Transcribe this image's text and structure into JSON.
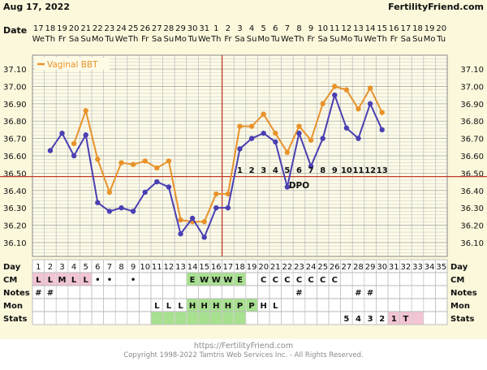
{
  "header": {
    "date": "Aug 17, 2022",
    "brand": "FertilityFriend.com",
    "date_row_label": "Date"
  },
  "dates": [
    "17",
    "18",
    "19",
    "20",
    "21",
    "22",
    "23",
    "24",
    "25",
    "26",
    "27",
    "28",
    "29",
    "30",
    "31",
    "1",
    "2",
    "3",
    "4",
    "5",
    "6",
    "7",
    "8",
    "9",
    "10",
    "11",
    "12",
    "13",
    "14",
    "15",
    "16",
    "17",
    "18",
    "19",
    "20"
  ],
  "weekdays": [
    "We",
    "Th",
    "Fr",
    "Sa",
    "Su",
    "Mo",
    "Tu",
    "We",
    "Th",
    "Fr",
    "Sa",
    "Su",
    "Mo",
    "Tu",
    "We",
    "Th",
    "Fr",
    "Sa",
    "Su",
    "Mo",
    "Tu",
    "We",
    "Th",
    "Fr",
    "Sa",
    "Su",
    "Mo",
    "Tu",
    "We",
    "Th",
    "Fr",
    "Sa",
    "Su",
    "Mo",
    "Tu"
  ],
  "chart_data": {
    "type": "line",
    "title": "",
    "legend": {
      "label": "Vaginal BBT",
      "color": "#e8922b",
      "placement": "top-left"
    },
    "y_ticks": [
      "37.10",
      "37.00",
      "36.90",
      "36.80",
      "36.70",
      "36.60",
      "36.50",
      "36.40",
      "36.30",
      "36.20",
      "36.10"
    ],
    "ylim": [
      36.02,
      37.18
    ],
    "x_days": [
      1,
      35
    ],
    "series": [
      {
        "color": "#e8922b",
        "points": [
          [
            4,
            36.67
          ],
          [
            5,
            36.86
          ],
          [
            6,
            36.58
          ],
          [
            7,
            36.39
          ],
          [
            8,
            36.56
          ],
          [
            9,
            36.55
          ],
          [
            10,
            36.57
          ],
          [
            11,
            36.53
          ],
          [
            12,
            36.57
          ],
          [
            13,
            36.23
          ],
          [
            14,
            36.22
          ],
          [
            15,
            36.22
          ],
          [
            16,
            36.38
          ],
          [
            17,
            36.38
          ],
          [
            18,
            36.77
          ],
          [
            19,
            36.77
          ],
          [
            20,
            36.84
          ],
          [
            21,
            36.73
          ],
          [
            22,
            36.62
          ],
          [
            23,
            36.77
          ],
          [
            24,
            36.69
          ],
          [
            25,
            36.9
          ],
          [
            26,
            37.0
          ],
          [
            27,
            36.98
          ],
          [
            28,
            36.87
          ],
          [
            29,
            36.99
          ],
          [
            30,
            36.85
          ]
        ]
      },
      {
        "color": "#4a3fb3",
        "points": [
          [
            2,
            36.63
          ],
          [
            3,
            36.73
          ],
          [
            4,
            36.6
          ],
          [
            5,
            36.72
          ],
          [
            6,
            36.33
          ],
          [
            7,
            36.28
          ],
          [
            8,
            36.3
          ],
          [
            9,
            36.28
          ],
          [
            10,
            36.39
          ],
          [
            11,
            36.45
          ],
          [
            12,
            36.42
          ],
          [
            13,
            36.15
          ],
          [
            14,
            36.24
          ],
          [
            15,
            36.13
          ],
          [
            16,
            36.3
          ],
          [
            17,
            36.3
          ],
          [
            18,
            36.64
          ],
          [
            19,
            36.7
          ],
          [
            20,
            36.73
          ],
          [
            21,
            36.68
          ],
          [
            22,
            36.42
          ],
          [
            23,
            36.73
          ],
          [
            24,
            36.54
          ],
          [
            25,
            36.7
          ],
          [
            26,
            36.95
          ],
          [
            27,
            36.76
          ],
          [
            28,
            36.7
          ],
          [
            29,
            36.9
          ],
          [
            30,
            36.75
          ]
        ]
      }
    ],
    "coverline": {
      "value": 36.48,
      "color": "#c0392b"
    },
    "ovulation_day": 16,
    "dpo_numbers": [
      {
        "day": 18,
        "label": "1"
      },
      {
        "day": 19,
        "label": "2"
      },
      {
        "day": 20,
        "label": "3"
      },
      {
        "day": 21,
        "label": "4"
      },
      {
        "day": 22,
        "label": "5"
      },
      {
        "day": 23,
        "label": "6"
      },
      {
        "day": 24,
        "label": "7"
      },
      {
        "day": 25,
        "label": "8"
      },
      {
        "day": 26,
        "label": "9"
      },
      {
        "day": 27,
        "label": "10"
      },
      {
        "day": 28,
        "label": "11"
      },
      {
        "day": 29,
        "label": "12"
      },
      {
        "day": 30,
        "label": "13"
      }
    ],
    "dpo_label": "DPO"
  },
  "table": {
    "day_label": "Day",
    "days": [
      "1",
      "2",
      "3",
      "4",
      "5",
      "6",
      "7",
      "8",
      "9",
      "10",
      "11",
      "12",
      "13",
      "14",
      "15",
      "16",
      "17",
      "18",
      "19",
      "20",
      "21",
      "22",
      "23",
      "24",
      "25",
      "26",
      "27",
      "28",
      "29",
      "30",
      "31",
      "32",
      "33",
      "34",
      "35"
    ],
    "rows": [
      {
        "label": "CM",
        "cells": [
          {
            "day": 1,
            "text": "L",
            "bg": "#f2c4d4"
          },
          {
            "day": 2,
            "text": "L",
            "bg": "#f2c4d4"
          },
          {
            "day": 3,
            "text": "M",
            "bg": "#f2c4d4"
          },
          {
            "day": 4,
            "text": "L",
            "bg": "#f2c4d4"
          },
          {
            "day": 5,
            "text": "L",
            "bg": "#f2c4d4"
          },
          {
            "day": 6,
            "text": "•"
          },
          {
            "day": 7,
            "text": "•"
          },
          {
            "day": 9,
            "text": "•"
          },
          {
            "day": 14,
            "text": "E",
            "bg": "#a7e08f"
          },
          {
            "day": 15,
            "text": "W",
            "bg": "#a7e08f"
          },
          {
            "day": 16,
            "text": "W",
            "bg": "#a7e08f"
          },
          {
            "day": 17,
            "text": "W",
            "bg": "#a7e08f"
          },
          {
            "day": 18,
            "text": "E",
            "bg": "#a7e08f"
          },
          {
            "day": 20,
            "text": "C"
          },
          {
            "day": 21,
            "text": "C"
          },
          {
            "day": 22,
            "text": "C"
          },
          {
            "day": 23,
            "text": "C"
          },
          {
            "day": 24,
            "text": "C"
          },
          {
            "day": 25,
            "text": "C"
          },
          {
            "day": 26,
            "text": "C"
          }
        ]
      },
      {
        "label": "Notes",
        "cells": [
          {
            "day": 1,
            "text": "#"
          },
          {
            "day": 2,
            "text": "#"
          },
          {
            "day": 23,
            "text": "#"
          },
          {
            "day": 28,
            "text": "#"
          },
          {
            "day": 29,
            "text": "#"
          }
        ]
      },
      {
        "label": "Mon",
        "cells": [
          {
            "day": 11,
            "text": "L"
          },
          {
            "day": 12,
            "text": "L"
          },
          {
            "day": 13,
            "text": "L"
          },
          {
            "day": 14,
            "text": "H",
            "bg": "#a7e08f"
          },
          {
            "day": 15,
            "text": "H",
            "bg": "#a7e08f"
          },
          {
            "day": 16,
            "text": "H",
            "bg": "#a7e08f"
          },
          {
            "day": 17,
            "text": "H",
            "bg": "#a7e08f"
          },
          {
            "day": 18,
            "text": "P",
            "bg": "#a7e08f"
          },
          {
            "day": 19,
            "text": "P",
            "bg": "#a7e08f"
          },
          {
            "day": 20,
            "text": "H"
          },
          {
            "day": 21,
            "text": "L"
          }
        ]
      },
      {
        "label": "Stats",
        "cells": [
          {
            "day": 11,
            "text": "",
            "bg": "#a7e08f"
          },
          {
            "day": 12,
            "text": "",
            "bg": "#a7e08f"
          },
          {
            "day": 13,
            "text": "",
            "bg": "#a7e08f"
          },
          {
            "day": 14,
            "text": "",
            "bg": "#a7e08f"
          },
          {
            "day": 15,
            "text": "",
            "bg": "#a7e08f"
          },
          {
            "day": 16,
            "text": "",
            "bg": "#a7e08f"
          },
          {
            "day": 17,
            "text": "",
            "bg": "#a7e08f"
          },
          {
            "day": 18,
            "text": "",
            "bg": "#a7e08f"
          },
          {
            "day": 27,
            "text": "5"
          },
          {
            "day": 28,
            "text": "4"
          },
          {
            "day": 29,
            "text": "3"
          },
          {
            "day": 30,
            "text": "2"
          },
          {
            "day": 31,
            "text": "1",
            "bg": "#f2c4d4"
          },
          {
            "day": 32,
            "text": "T",
            "bg": "#f2c4d4"
          },
          {
            "day": 33,
            "text": "",
            "bg": "#f2c4d4"
          }
        ]
      }
    ]
  },
  "footer": {
    "url": "https://FertilityFriend.com",
    "copyright": "Copyright 1998-2022 Tamtris Web Services Inc. - All Rights Reserved."
  }
}
